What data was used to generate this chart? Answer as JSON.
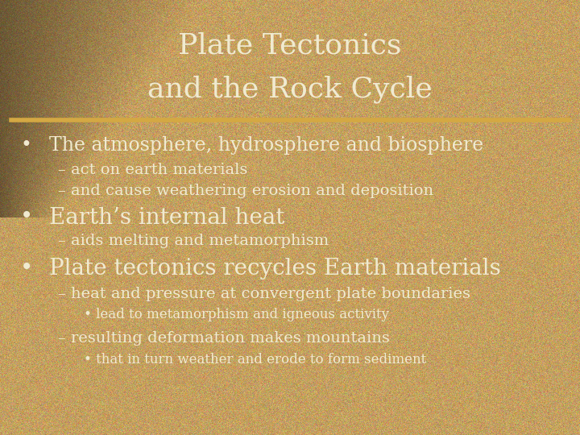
{
  "title_line1": "Plate Tectonics",
  "title_line2": "and the Rock Cycle",
  "title_color": "#f0ead0",
  "divider_color": "#d4a843",
  "bg_color_main": "#c4a060",
  "bg_color_dark": "#8b6030",
  "text_color": "#f0ead0",
  "bullet1_main": "The atmosphere, hydrosphere and biosphere",
  "bullet1_sub1": "– act on earth materials",
  "bullet1_sub2": "– and cause weathering erosion and deposition",
  "bullet2_main": "Earth’s internal heat",
  "bullet2_sub1": "– aids melting and metamorphism",
  "bullet3_main": "Plate tectonics recycles Earth materials",
  "bullet3_sub1": "– heat and pressure at convergent plate boundaries",
  "bullet3_sub1b": "• lead to metamorphism and igneous activity",
  "bullet3_sub2": "– resulting deformation makes mountains",
  "bullet3_sub2b": "• that in turn weather and erode to form sediment",
  "figsize": [
    7.2,
    5.4
  ],
  "dpi": 100
}
